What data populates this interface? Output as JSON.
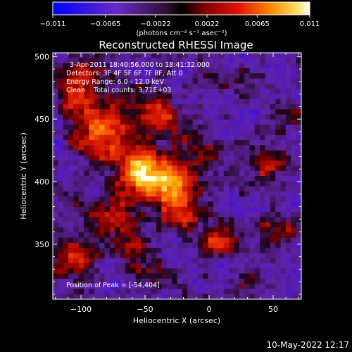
{
  "chart_data": {
    "type": "heatmap",
    "title": "Reconstructed RHESSI Image",
    "xlabel": "Heliocentric X (arcsec)",
    "ylabel": "Heliocentric Y (arcsec)",
    "xlim": [
      -122,
      72
    ],
    "ylim": [
      306,
      503
    ],
    "x_ticks": [
      -100,
      -50,
      0,
      50
    ],
    "x_tick_labels": [
      "−100",
      "−50",
      "0",
      "50"
    ],
    "y_ticks": [
      350,
      400,
      450,
      500
    ],
    "y_tick_labels": [
      "350",
      "400",
      "450",
      "500"
    ],
    "colorbar": {
      "range": [
        -0.011,
        0.011
      ],
      "ticks": [
        -0.011,
        -0.0065,
        -0.0022,
        0.0022,
        0.0065,
        0.011
      ],
      "tick_labels": [
        "−0.011",
        "−0.0065",
        "−0.0022",
        "0.0022",
        "0.0065",
        "0.011"
      ],
      "unit_label": "(photons cm⁻² s⁻¹ asec⁻²)",
      "colormap": "blue-purple-red-orange-yellow-white"
    },
    "annotations": [
      "3-Apr-2011 18:40:56.000 to 18:41:32.000",
      "Detectors: 3F 4F 5F 6F 7F 8F, Att 0",
      "Energy Range: 6.0 - 12.0 keV",
      "Clean    Total counts: 3.71E+03"
    ],
    "peak_label": "Position of Peak = [-54,404]",
    "peak": [
      -54,
      404
    ],
    "features": [
      {
        "x": -52,
        "y": 407,
        "amp": 1.15,
        "s": 13
      },
      {
        "x": -28,
        "y": 395,
        "amp": 0.95,
        "s": 13
      },
      {
        "x": -82,
        "y": 440,
        "amp": 0.85,
        "s": 15
      },
      {
        "x": -105,
        "y": 470,
        "amp": 0.6,
        "s": 12
      },
      {
        "x": -42,
        "y": 452,
        "amp": 0.65,
        "s": 12
      },
      {
        "x": -10,
        "y": 428,
        "amp": 0.55,
        "s": 10
      },
      {
        "x": 8,
        "y": 352,
        "amp": 0.6,
        "s": 10
      },
      {
        "x": -75,
        "y": 375,
        "amp": 0.55,
        "s": 12
      },
      {
        "x": -110,
        "y": 340,
        "amp": 0.55,
        "s": 12
      },
      {
        "x": -20,
        "y": 370,
        "amp": 0.45,
        "s": 10
      },
      {
        "x": 45,
        "y": 415,
        "amp": 0.45,
        "s": 11
      },
      {
        "x": 55,
        "y": 360,
        "amp": 0.4,
        "s": 10
      },
      {
        "x": -60,
        "y": 345,
        "amp": 0.4,
        "s": 10
      },
      {
        "x": -95,
        "y": 490,
        "amp": 0.45,
        "s": 9
      },
      {
        "x": 20,
        "y": 480,
        "amp": 0.3,
        "s": 9
      },
      {
        "x": 30,
        "y": 320,
        "amp": 0.3,
        "s": 8
      },
      {
        "x": -40,
        "y": 325,
        "amp": 0.35,
        "s": 9
      },
      {
        "x": 62,
        "y": 450,
        "amp": 0.25,
        "s": 8
      }
    ]
  },
  "footer": {
    "timestamp": "10-May-2022 12:17"
  }
}
